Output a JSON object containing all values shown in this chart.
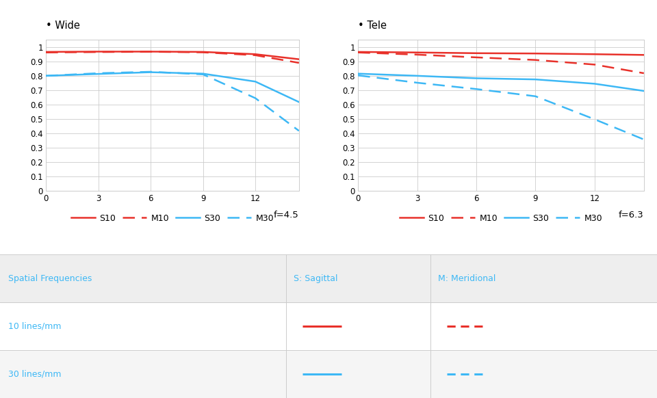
{
  "wide_title": "• Wide",
  "tele_title": "• Tele",
  "wide_label": "f=4.5",
  "tele_label": "f=6.3",
  "x_max": 14.5,
  "x_ticks": [
    0,
    3,
    6,
    9,
    12
  ],
  "y_ticks": [
    0,
    0.1,
    0.2,
    0.3,
    0.4,
    0.5,
    0.6,
    0.7,
    0.8,
    0.9,
    1
  ],
  "y_tick_labels": [
    "0",
    "0.1",
    "0.2",
    "0.3",
    "0.4",
    "0.5",
    "0.6",
    "0.7",
    "0.8",
    "0.9",
    "1"
  ],
  "red_color": "#e8312a",
  "blue_color": "#3db8f5",
  "table_header_bg": "#eeeeee",
  "table_row1_bg": "#ffffff",
  "table_row2_bg": "#f5f5f5",
  "table_text_color": "#3db8f5",
  "table_border_color": "#cccccc",
  "wide_S10": [
    0,
    0.966,
    3,
    0.968,
    6,
    0.968,
    9,
    0.966,
    12,
    0.95,
    14.5,
    0.915
  ],
  "wide_M10": [
    0,
    0.962,
    3,
    0.965,
    6,
    0.967,
    9,
    0.963,
    12,
    0.943,
    14.5,
    0.89
  ],
  "wide_S30": [
    0,
    0.8,
    3,
    0.813,
    6,
    0.825,
    9,
    0.815,
    12,
    0.76,
    14.5,
    0.618
  ],
  "wide_M30": [
    0,
    0.8,
    3,
    0.818,
    6,
    0.828,
    9,
    0.81,
    12,
    0.645,
    14.5,
    0.418
  ],
  "tele_S10": [
    0,
    0.966,
    3,
    0.962,
    6,
    0.957,
    9,
    0.955,
    12,
    0.95,
    14.5,
    0.945
  ],
  "tele_M10": [
    0,
    0.962,
    3,
    0.947,
    6,
    0.928,
    9,
    0.91,
    12,
    0.878,
    14.5,
    0.818
  ],
  "tele_S30": [
    0,
    0.815,
    3,
    0.8,
    6,
    0.783,
    9,
    0.775,
    12,
    0.745,
    14.5,
    0.695
  ],
  "tele_M30": [
    0,
    0.803,
    3,
    0.752,
    6,
    0.708,
    9,
    0.658,
    12,
    0.498,
    14.5,
    0.358
  ],
  "legend_labels": [
    "S10",
    "M10",
    "S30",
    "M30"
  ],
  "table_col1_label": "Spatial Frequencies",
  "table_col2_label": "S: Sagittal",
  "table_col3_label": "M: Meridional",
  "table_row1_label": "10 lines/mm",
  "table_row2_label": "30 lines/mm",
  "table_col_splits": [
    0.435,
    0.655
  ]
}
